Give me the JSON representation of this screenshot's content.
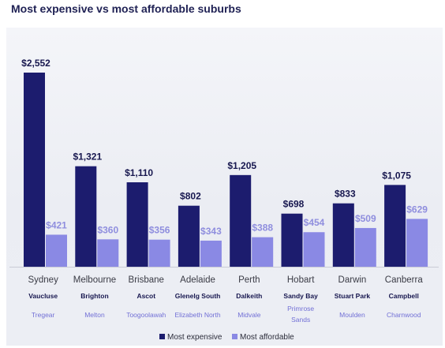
{
  "title": "Most expensive vs most affordable suburbs",
  "chart_data": {
    "type": "bar",
    "title": "Most expensive vs most affordable suburbs",
    "categories": [
      "Sydney",
      "Melbourne",
      "Brisbane",
      "Adelaide",
      "Perth",
      "Hobart",
      "Darwin",
      "Canberra"
    ],
    "series": [
      {
        "name": "Most expensive",
        "values": [
          2552,
          1321,
          1110,
          802,
          1205,
          698,
          833,
          1075
        ],
        "labels": [
          "$2,552",
          "$1,321",
          "$1,110",
          "$802",
          "$1,205",
          "$698",
          "$833",
          "$1,075"
        ],
        "suburbs": [
          "Vaucluse",
          "Brighton",
          "Ascot",
          "Glenelg South",
          "Dalkeith",
          "Sandy Bay",
          "Stuart Park",
          "Campbell"
        ],
        "color": "#1c1c6e"
      },
      {
        "name": "Most affordable",
        "values": [
          421,
          360,
          356,
          343,
          388,
          454,
          509,
          629
        ],
        "labels": [
          "$421",
          "$360",
          "$356",
          "$343",
          "$388",
          "$454",
          "$509",
          "$629"
        ],
        "suburbs": [
          [
            "Tregear"
          ],
          [
            "Melton"
          ],
          [
            "Toogoolawah"
          ],
          [
            "Elizabeth North"
          ],
          [
            "Midvale"
          ],
          [
            "Primrose",
            "Sands"
          ],
          [
            "Moulden"
          ],
          [
            "Charnwood"
          ]
        ],
        "color": "#8a89e4"
      }
    ],
    "ylim": [
      0,
      2552
    ],
    "grid": false,
    "legend": "bottom"
  }
}
